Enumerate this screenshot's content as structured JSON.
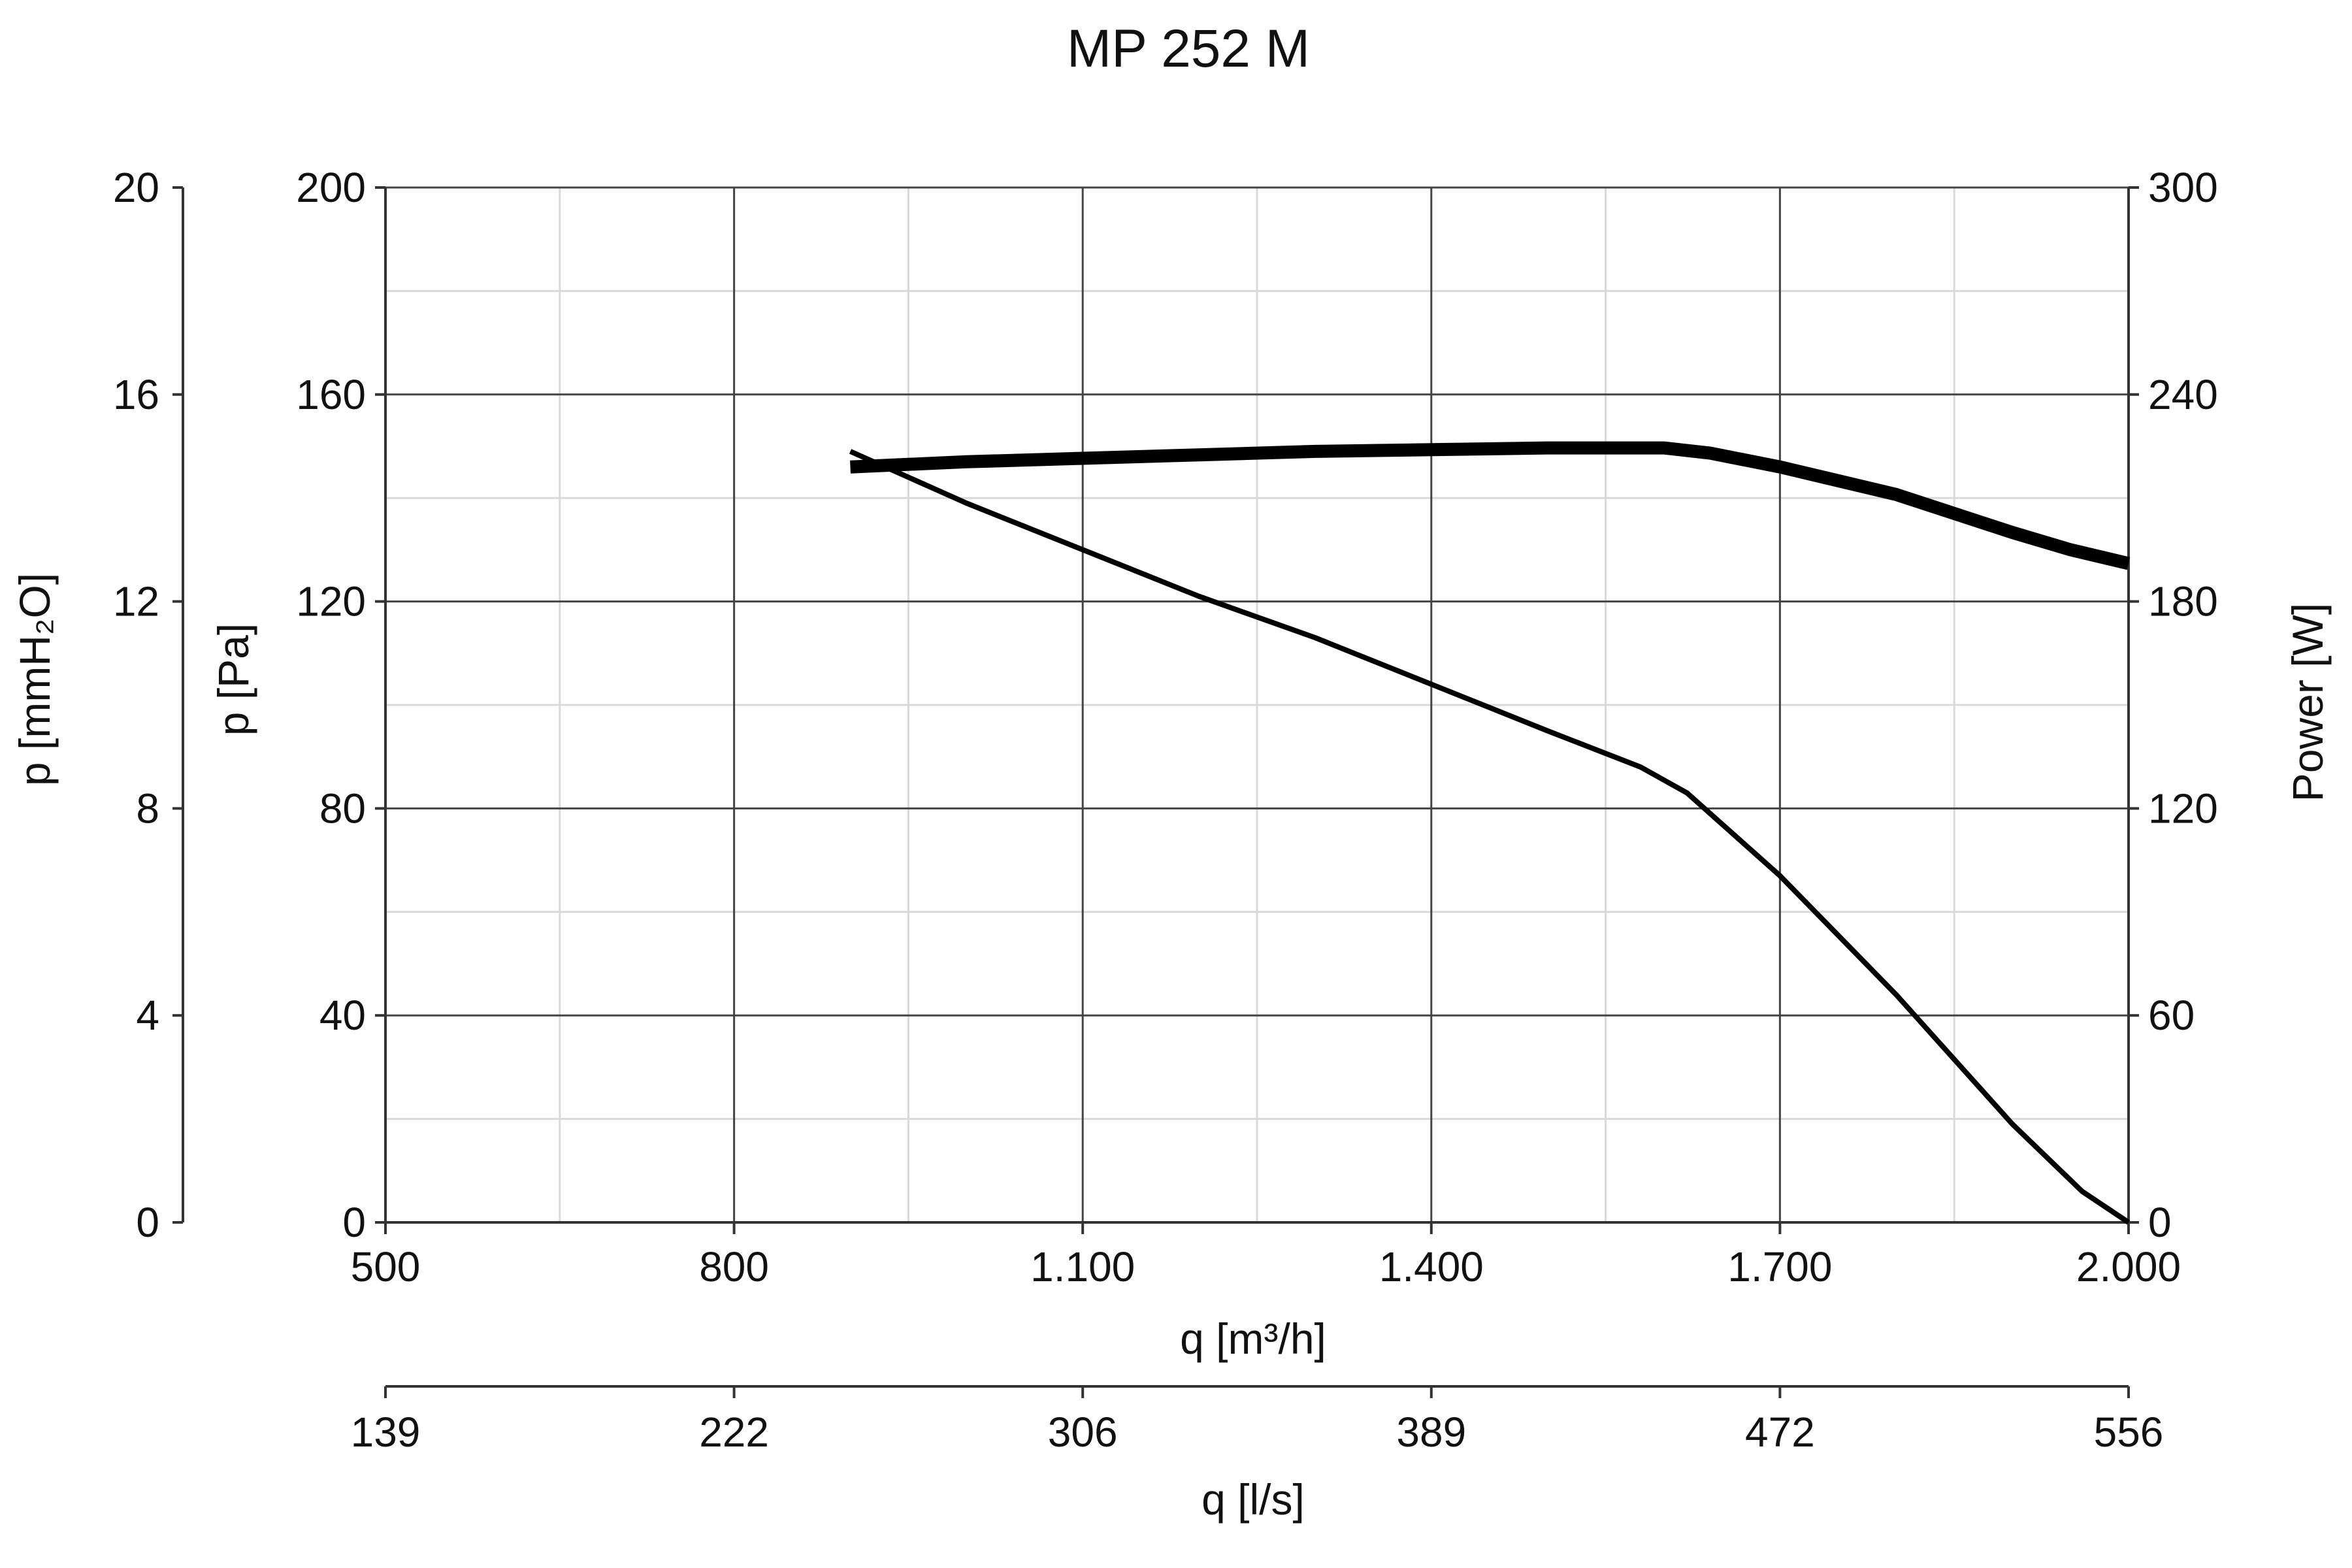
{
  "chart_data": {
    "type": "line",
    "title": "MP 252 M",
    "xlabel": "q [m³/h]",
    "x2label": "q [l/s]",
    "ylabel": "p [Pa]",
    "y2label": "p [mmH₂O]",
    "y3label": "Power [W]",
    "xlim": [
      500,
      2000
    ],
    "ylim": [
      0,
      200
    ],
    "y2lim": [
      0,
      20
    ],
    "y3lim": [
      0,
      300
    ],
    "grid": true,
    "x_ticks": [
      "500",
      "800",
      "1.100",
      "1.400",
      "1.700",
      "2.000"
    ],
    "x2_ticks": [
      "139",
      "222",
      "306",
      "389",
      "472",
      "556"
    ],
    "y_ticks": [
      "0",
      "40",
      "80",
      "120",
      "160",
      "200"
    ],
    "y2_ticks": [
      "0",
      "4",
      "8",
      "12",
      "16",
      "20"
    ],
    "y3_ticks": [
      "0",
      "60",
      "120",
      "180",
      "240",
      "300"
    ],
    "series": [
      {
        "axis": "left",
        "x": [
          900,
          1000,
          1100,
          1200,
          1300,
          1400,
          1500,
          1580,
          1620,
          1660,
          1700,
          1800,
          1900,
          1960,
          2000
        ],
        "values": [
          149,
          139,
          130,
          121,
          113,
          104,
          95,
          88,
          83,
          75,
          67,
          44,
          19,
          6,
          0
        ],
        "color": "#000000"
      },
      {
        "axis": "right",
        "x": [
          900,
          1000,
          1100,
          1200,
          1300,
          1400,
          1500,
          1600,
          1640,
          1700,
          1800,
          1900,
          1950,
          2000
        ],
        "values": [
          219,
          220.5,
          221.5,
          222.5,
          223.5,
          224,
          224.5,
          224.5,
          223,
          219,
          211,
          200,
          195,
          191
        ],
        "color": "#000000"
      }
    ]
  }
}
